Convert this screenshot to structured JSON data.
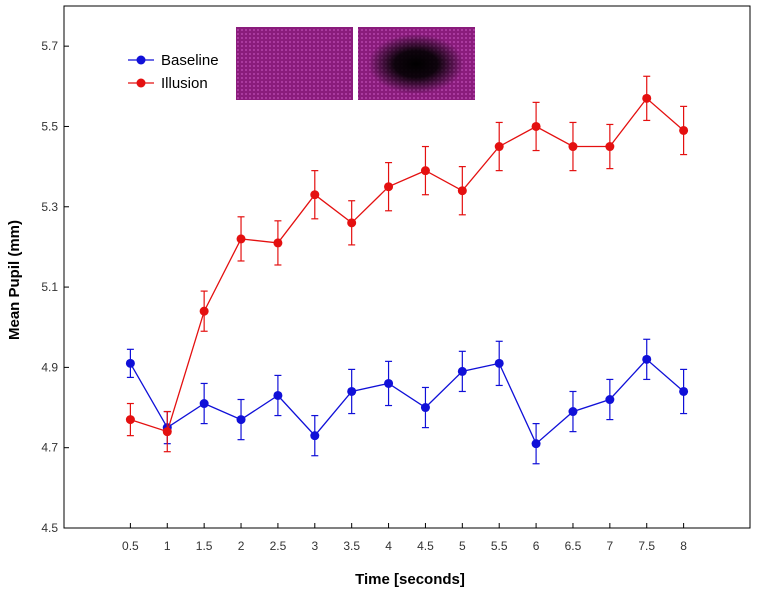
{
  "colors": {
    "baseline": "#1010d8",
    "illusion": "#e41010",
    "stimulus_bg": "#8a1c7c",
    "axis": "#000000"
  },
  "chart_data": {
    "type": "line",
    "title": "",
    "xlabel": "Time [seconds]",
    "ylabel": "Mean Pupil (mm)",
    "categories": [
      "0.5",
      "1",
      "1.5",
      "2",
      "2.5",
      "3",
      "3.5",
      "4",
      "4.5",
      "5",
      "5.5",
      "6",
      "6.5",
      "7",
      "7.5",
      "8"
    ],
    "x": [
      0.5,
      1,
      1.5,
      2,
      2.5,
      3,
      3.5,
      4,
      4.5,
      5,
      5.5,
      6,
      6.5,
      7,
      7.5,
      8
    ],
    "xlim": [
      -0.4,
      8.9
    ],
    "ylim": [
      4.5,
      5.8
    ],
    "yticks": [
      "4.5",
      "4.7",
      "4.9",
      "5.1",
      "5.3",
      "5.5",
      "5.7"
    ],
    "legend_position": "top-left",
    "series": [
      {
        "name": "Baseline",
        "color": "#1010d8",
        "values": [
          4.91,
          4.75,
          4.81,
          4.77,
          4.83,
          4.73,
          4.84,
          4.86,
          4.8,
          4.89,
          4.91,
          4.71,
          4.79,
          4.82,
          4.92,
          4.84
        ],
        "errors": [
          0.035,
          0.04,
          0.05,
          0.05,
          0.05,
          0.05,
          0.055,
          0.055,
          0.05,
          0.05,
          0.055,
          0.05,
          0.05,
          0.05,
          0.05,
          0.055
        ]
      },
      {
        "name": "Illusion",
        "color": "#e41010",
        "values": [
          4.77,
          4.74,
          5.04,
          5.22,
          5.21,
          5.33,
          5.26,
          5.35,
          5.39,
          5.34,
          5.45,
          5.5,
          5.45,
          5.45,
          5.57,
          5.49
        ],
        "errors": [
          0.04,
          0.05,
          0.05,
          0.055,
          0.055,
          0.06,
          0.055,
          0.06,
          0.06,
          0.06,
          0.06,
          0.06,
          0.06,
          0.055,
          0.055,
          0.06
        ]
      }
    ]
  }
}
